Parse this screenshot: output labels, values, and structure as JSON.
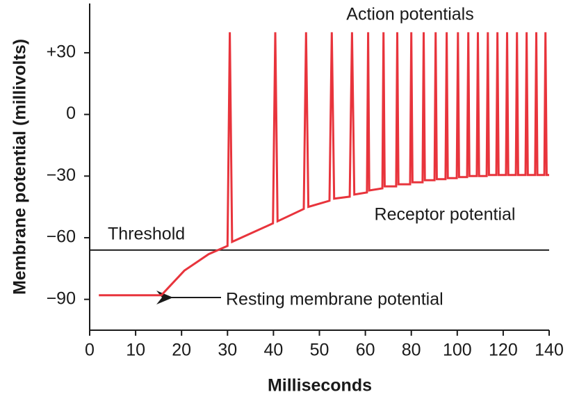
{
  "chart_data": {
    "type": "line",
    "x_label": "Milliseconds",
    "y_label": "Membrane potential (millivolts)",
    "xlim": [
      0,
      140
    ],
    "xticks": [
      0,
      10,
      20,
      30,
      40,
      50,
      60,
      80,
      100,
      120,
      140
    ],
    "ylim": [
      -105,
      54
    ],
    "yticks": [
      {
        "value": 30,
        "label": "+30"
      },
      0,
      {
        "value": -30,
        "label": "−30"
      },
      {
        "value": -60,
        "label": "−60"
      },
      {
        "value": -90,
        "label": "−90"
      }
    ],
    "series": [
      {
        "color": "#e8343c",
        "x": [
          2,
          15.6,
          20.6,
          25.9,
          30,
          30.5,
          31,
          39.9,
          40.4,
          40.9,
          46.6,
          47.1,
          47.6,
          52.2,
          52.7,
          53.2,
          56.6,
          57.1,
          57.6,
          60.7,
          61.2,
          61.7,
          67.4,
          67.9,
          68.4,
          73.4,
          73.9,
          74.4,
          79.5,
          80,
          80.5,
          84.9,
          85.4,
          85.9,
          90.1,
          90.6,
          91.1,
          94.9,
          95.4,
          95.9,
          99.8,
          100.3,
          100.8,
          104.3,
          104.8,
          105.3,
          108.5,
          109,
          109.5,
          112.8,
          113.3,
          113.8,
          117,
          117.5,
          118,
          121.2,
          121.7,
          122.2,
          125.5,
          126,
          126.5,
          129.7,
          130.2,
          130.7,
          133.9,
          134.4,
          134.9,
          137.9,
          138.4,
          138.9,
          140
        ],
        "values": [
          -88,
          -88,
          -76,
          -68,
          -64,
          40,
          -62,
          -53,
          40,
          -52,
          -46,
          40,
          -45,
          -42,
          40,
          -41,
          -40,
          40,
          -39,
          -38,
          40,
          -37,
          -36,
          40,
          -35,
          -35,
          40,
          -34,
          -34,
          40,
          -33,
          -33,
          40,
          -32,
          -32,
          40,
          -31.5,
          -31.5,
          40,
          -31,
          -31,
          40,
          -30.5,
          -30.5,
          40,
          -30,
          -30,
          40,
          -30,
          -30,
          40,
          -29.5,
          -29.5,
          40,
          -29.5,
          -29.5,
          40,
          -29.5,
          -29.5,
          40,
          -29.5,
          -29.5,
          40,
          -29.5,
          -29.5,
          40,
          -29.5,
          -29.5,
          40,
          -29.5,
          -29.5
        ]
      }
    ],
    "threshold": {
      "label": "Threshold",
      "value": -66
    },
    "annotations": [
      "Action potentials",
      "Receptor potential",
      "Resting membrane potential"
    ]
  }
}
